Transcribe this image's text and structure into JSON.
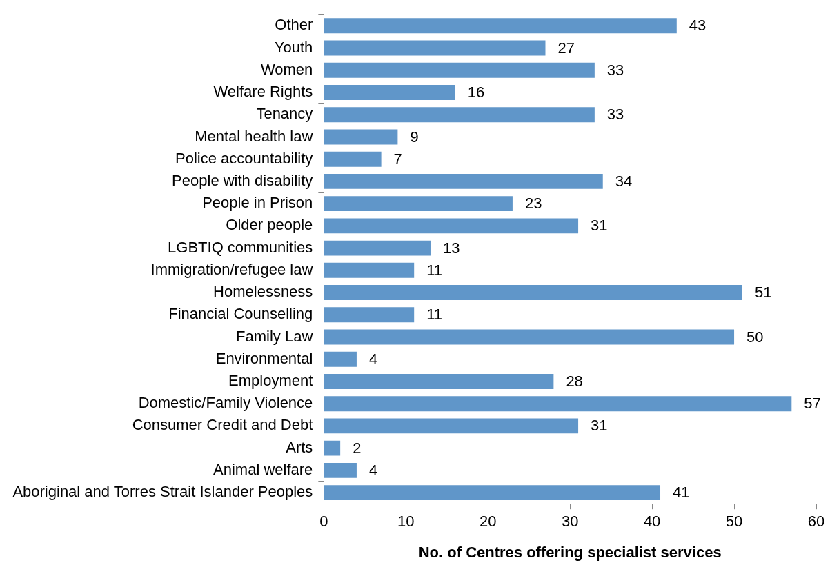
{
  "chart_data": {
    "type": "bar",
    "orientation": "horizontal",
    "xlabel": "No. of Centres offering specialist services",
    "categories": [
      "Other",
      "Youth",
      "Women",
      "Welfare Rights",
      "Tenancy",
      "Mental health law",
      "Police accountability",
      "People with disability",
      "People in Prison",
      "Older people",
      "LGBTIQ communities",
      "Immigration/refugee law",
      "Homelessness",
      "Financial Counselling",
      "Family Law",
      "Environmental",
      "Employment",
      "Domestic/Family Violence",
      "Consumer Credit and Debt",
      "Arts",
      "Animal welfare",
      "Aboriginal and Torres Strait Islander Peoples"
    ],
    "values": [
      43,
      27,
      33,
      16,
      33,
      9,
      7,
      34,
      23,
      31,
      13,
      11,
      51,
      11,
      50,
      4,
      28,
      57,
      31,
      2,
      4,
      41
    ],
    "color": "#6096c9",
    "xlim": [
      0,
      60
    ],
    "xticks": [
      0,
      10,
      20,
      30,
      40,
      50,
      60
    ],
    "data_labels": true,
    "legend": false
  }
}
